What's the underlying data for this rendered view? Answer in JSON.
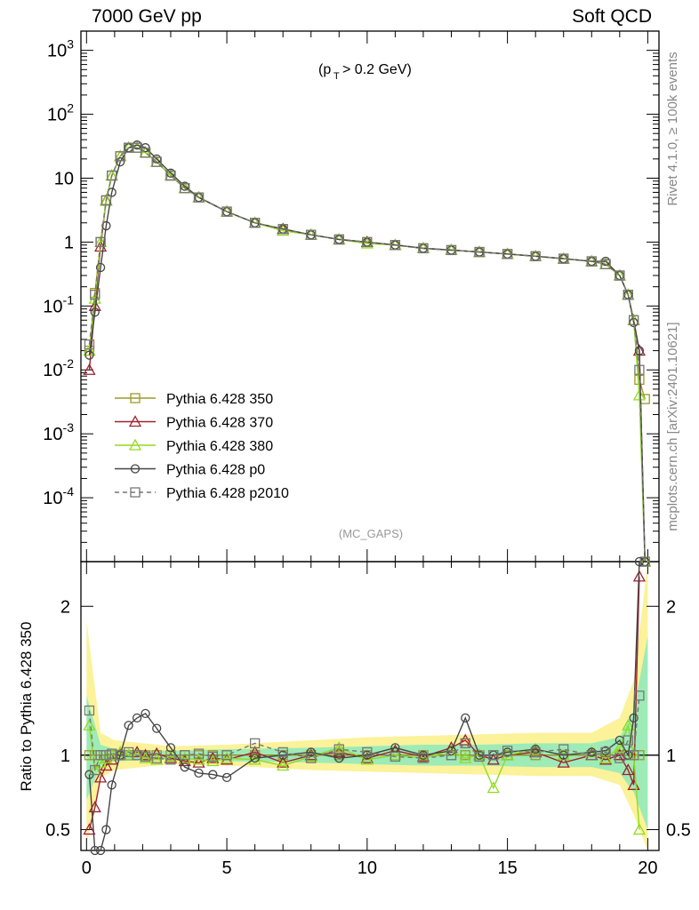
{
  "header": {
    "left": "7000 GeV pp",
    "right": "Soft QCD"
  },
  "main": {
    "annotation": "(p_T > 0.2 GeV)",
    "watermark": "(MC_GAPS)"
  },
  "side": {
    "top": "Rivet 4.1.0, ≥ 100k events",
    "bottom": "mcplots.cern.ch [arXiv:2401.10621]"
  },
  "colors": {
    "s350": "#9a9a2a",
    "s370": "#a0202e",
    "s380": "#90dc20",
    "p0": "#444444",
    "p2010": "#777777"
  },
  "chart_data": [
    {
      "type": "line",
      "scale": "log",
      "title": "",
      "xlabel": "",
      "ylabel": "",
      "xlim": [
        -0.2,
        20.4
      ],
      "ylim": [
        1e-05,
        2000
      ],
      "ytick_labels": [
        "10^3",
        "10^2",
        "10",
        "1",
        "10^-1",
        "10^-2",
        "10^-3",
        "10^-4"
      ],
      "xtick_labels": [
        "0",
        "5",
        "10",
        "15",
        "20"
      ],
      "legend": {
        "position": "bottom-left",
        "entries": [
          "Pythia 6.428 350",
          "Pythia 6.428 370",
          "Pythia 6.428 380",
          "Pythia 6.428 p0",
          "Pythia 6.428 p2010"
        ]
      },
      "x": [
        0.1,
        0.3,
        0.5,
        0.7,
        0.9,
        1.2,
        1.5,
        1.8,
        2.1,
        2.5,
        3.0,
        3.5,
        4.0,
        5.0,
        6.0,
        7.0,
        8.0,
        9.0,
        10.0,
        11.0,
        12.0,
        13.0,
        14.0,
        15.0,
        16.0,
        17.0,
        18.0,
        18.5,
        19.0,
        19.3,
        19.5,
        19.7,
        19.9
      ],
      "series": [
        {
          "name": "Pythia 6.428 350",
          "values": [
            0.02,
            0.16,
            1.0,
            4.5,
            11,
            22,
            30,
            30,
            25,
            18,
            11,
            7,
            5,
            3,
            2,
            1.6,
            1.3,
            1.1,
            1.0,
            0.9,
            0.8,
            0.75,
            0.7,
            0.65,
            0.6,
            0.55,
            0.5,
            0.45,
            0.3,
            0.15,
            0.06,
            0.007,
            0.0035
          ]
        },
        {
          "name": "Pythia 6.428 370",
          "values": [
            0.01,
            0.1,
            0.85,
            4.5,
            11,
            22,
            30,
            30,
            25,
            18,
            11,
            7,
            5,
            3,
            2,
            1.6,
            1.3,
            1.1,
            1.0,
            0.9,
            0.8,
            0.75,
            0.7,
            0.65,
            0.6,
            0.55,
            0.5,
            0.45,
            0.3,
            0.15,
            0.06,
            0.02,
            1e-05
          ]
        },
        {
          "name": "Pythia 6.428 380",
          "values": [
            0.02,
            0.13,
            1.0,
            4.4,
            11,
            22,
            30,
            30,
            25,
            18,
            11,
            7,
            5,
            3,
            2,
            1.5,
            1.3,
            1.1,
            0.95,
            0.9,
            0.8,
            0.75,
            0.7,
            0.65,
            0.6,
            0.55,
            0.5,
            0.45,
            0.3,
            0.15,
            0.06,
            0.004,
            1e-05
          ]
        },
        {
          "name": "Pythia 6.428 p0",
          "values": [
            0.017,
            0.08,
            0.4,
            1.8,
            6,
            18,
            30,
            33,
            30,
            20,
            12,
            7.5,
            5,
            3,
            2,
            1.6,
            1.3,
            1.1,
            1.0,
            0.9,
            0.8,
            0.75,
            0.7,
            0.65,
            0.6,
            0.55,
            0.5,
            0.5,
            0.3,
            0.15,
            0.055,
            0.02,
            1e-05
          ]
        },
        {
          "name": "Pythia 6.428 p2010",
          "values": [
            0.025,
            0.15,
            1.0,
            4.5,
            11,
            22,
            30,
            30,
            25,
            18,
            11,
            7,
            5,
            3,
            2,
            1.6,
            1.3,
            1.1,
            1.0,
            0.9,
            0.8,
            0.75,
            0.7,
            0.65,
            0.6,
            0.55,
            0.5,
            0.45,
            0.3,
            0.15,
            0.06,
            0.01,
            1e-05
          ]
        }
      ]
    },
    {
      "type": "line",
      "title": "",
      "xlabel": "",
      "ylabel": "Ratio to Pythia 6.428 350",
      "xlim": [
        -0.2,
        20.4
      ],
      "ylim": [
        0.36,
        2.3
      ],
      "ytick_labels": [
        "2",
        "1",
        "0.5"
      ],
      "xtick_labels": [
        "0",
        "5",
        "10",
        "15",
        "20"
      ],
      "ref_line": 1,
      "band": {
        "x": [
          0.0,
          0.5,
          1.0,
          3.0,
          5.0,
          8.0,
          10.0,
          12.0,
          14.0,
          16.0,
          18.0,
          19.0,
          19.5,
          20.0
        ],
        "outer_low": [
          0.4,
          0.85,
          0.9,
          0.94,
          0.93,
          0.9,
          0.89,
          0.88,
          0.87,
          0.86,
          0.86,
          0.8,
          0.6,
          0.36
        ],
        "outer_high": [
          1.9,
          1.15,
          1.1,
          1.06,
          1.07,
          1.1,
          1.12,
          1.13,
          1.14,
          1.15,
          1.15,
          1.25,
          1.5,
          2.3
        ],
        "inner_low": [
          0.7,
          0.93,
          0.96,
          0.97,
          0.96,
          0.95,
          0.94,
          0.93,
          0.93,
          0.92,
          0.92,
          0.88,
          0.75,
          0.5
        ],
        "inner_high": [
          1.4,
          1.07,
          1.04,
          1.03,
          1.04,
          1.05,
          1.06,
          1.07,
          1.07,
          1.08,
          1.08,
          1.12,
          1.3,
          1.8
        ]
      },
      "x": [
        0.1,
        0.3,
        0.5,
        0.7,
        0.9,
        1.2,
        1.5,
        1.8,
        2.1,
        2.5,
        3.0,
        3.5,
        4.0,
        4.5,
        5.0,
        6.0,
        7.0,
        8.0,
        9.0,
        10.0,
        11.0,
        12.0,
        13.0,
        13.5,
        14.0,
        14.5,
        15.0,
        16.0,
        17.0,
        18.0,
        18.5,
        19.0,
        19.3,
        19.5,
        19.7
      ],
      "series": [
        {
          "name": "Pythia 6.428 350",
          "values": [
            1,
            1,
            1,
            1,
            1,
            1,
            1,
            1,
            1,
            1,
            1,
            1,
            1,
            1,
            1,
            1,
            1,
            1,
            1,
            1,
            1,
            1,
            1,
            1,
            1,
            1,
            1,
            1,
            1,
            1,
            1,
            1,
            1,
            1,
            1
          ]
        },
        {
          "name": "Pythia 6.428 370",
          "values": [
            0.5,
            0.65,
            0.85,
            0.93,
            0.97,
            1.0,
            1.0,
            1.02,
            1.0,
            1.01,
            0.98,
            0.96,
            0.95,
            0.98,
            0.97,
            1.02,
            0.95,
            1.0,
            1.02,
            0.98,
            1.03,
            0.99,
            1.05,
            1.1,
            1.0,
            0.97,
            1.0,
            1.02,
            0.95,
            1.0,
            0.97,
            1.0,
            0.9,
            0.8,
            2.2
          ]
        },
        {
          "name": "Pythia 6.428 380",
          "values": [
            1.2,
            0.9,
            0.95,
            0.98,
            1.0,
            1.02,
            1.0,
            1.0,
            0.98,
            0.97,
            0.99,
            0.98,
            0.97,
            0.96,
            0.98,
            0.97,
            0.93,
            0.99,
            1.05,
            0.97,
            1.0,
            0.98,
            1.03,
            0.98,
            1.0,
            0.78,
            1.0,
            1.04,
            1.0,
            1.02,
            0.98,
            1.05,
            1.2,
            1.0,
            0.5
          ]
        },
        {
          "name": "Pythia 6.428 p0",
          "values": [
            0.87,
            0.36,
            0.36,
            0.5,
            0.8,
            1.0,
            1.2,
            1.25,
            1.28,
            1.18,
            1.05,
            0.92,
            0.88,
            0.87,
            0.85,
            0.98,
            1.0,
            1.02,
            0.98,
            1.0,
            1.05,
            1.0,
            1.03,
            1.25,
            1.0,
            1.0,
            1.02,
            1.04,
            1.0,
            1.02,
            1.03,
            1.1,
            1.0,
            1.25,
            2.3
          ]
        },
        {
          "name": "Pythia 6.428 p2010",
          "values": [
            1.3,
            0.9,
            1.0,
            1.0,
            1.01,
            1.0,
            1.02,
            1.0,
            0.99,
            0.98,
            0.97,
            1.0,
            1.01,
            0.99,
            1.0,
            1.08,
            1.02,
            0.98,
            1.04,
            1.02,
            0.99,
            0.98,
            1.0,
            1.08,
            0.99,
            1.0,
            1.03,
            1.02,
            1.04,
            1.0,
            1.02,
            0.98,
            1.1,
            1.0,
            1.4
          ]
        }
      ]
    }
  ]
}
